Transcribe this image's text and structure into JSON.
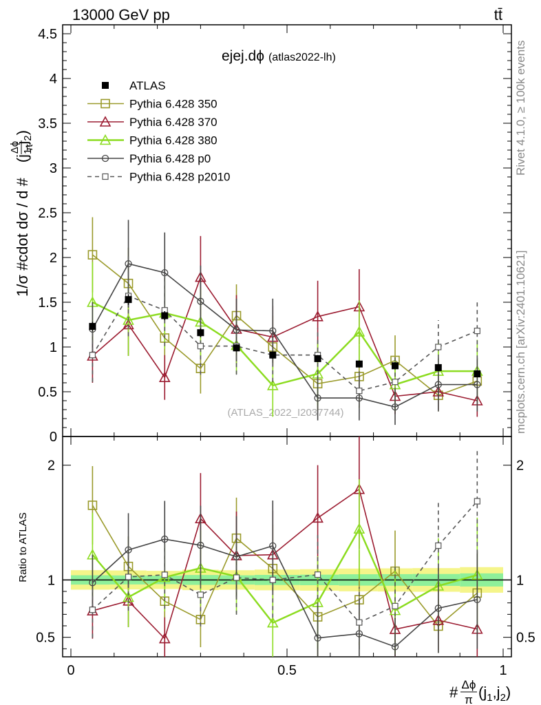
{
  "header": {
    "energy_label": "13000 GeV pp",
    "process_label": "tt̄"
  },
  "side_labels": {
    "rivet": "Rivet 4.1.0, ≥ 100k events",
    "mcplots": "mcplots.cern.ch [arXiv:2401.10621]"
  },
  "chart_data": {
    "type": "line",
    "title": "ejej.dϕ",
    "subtitle": "(atlas2022-lh)",
    "watermark": "(ATLAS_2022_I2037744)",
    "ylabel_parts": {
      "prefix": "1/σ #cdot dσ / d #",
      "frac_num": "Δϕ",
      "frac_den": "π",
      "suffix": "(j",
      "sub1": "1",
      "comma": ",j",
      "sub2": "2",
      "close": ")"
    },
    "xlabel_parts": {
      "prefix": "#",
      "frac_num": "Δϕ",
      "frac_den": "π",
      "suffix": "(j",
      "sub1": "1",
      "comma": ",j",
      "sub2": "2",
      "close": ")"
    },
    "ratio_ylabel": "Ratio to ATLAS",
    "xlim": [
      0,
      1
    ],
    "ylim": [
      0,
      4.6
    ],
    "ratio_ylim": [
      0.33,
      2.25
    ],
    "x_ticks": [
      {
        "v": 0,
        "label": "0"
      },
      {
        "v": 0.5,
        "label": "0.5"
      },
      {
        "v": 1,
        "label": "1"
      }
    ],
    "y_ticks": [
      {
        "v": 0,
        "label": "0"
      },
      {
        "v": 0.5,
        "label": "0.5"
      },
      {
        "v": 1,
        "label": "1"
      },
      {
        "v": 1.5,
        "label": "1.5"
      },
      {
        "v": 2,
        "label": "2"
      },
      {
        "v": 2.5,
        "label": "2.5"
      },
      {
        "v": 3,
        "label": "3"
      },
      {
        "v": 3.5,
        "label": "3.5"
      },
      {
        "v": 4,
        "label": "4"
      },
      {
        "v": 4.5,
        "label": "4.5"
      }
    ],
    "ratio_ticks": [
      {
        "v": 0.5,
        "label": "0.5"
      },
      {
        "v": 1,
        "label": "1"
      },
      {
        "v": 2,
        "label": "2"
      }
    ],
    "x": [
      0.05,
      0.133,
      0.217,
      0.3,
      0.383,
      0.467,
      0.571,
      0.667,
      0.75,
      0.85,
      0.94
    ],
    "data": {
      "name": "ATLAS",
      "values": [
        1.23,
        1.53,
        1.35,
        1.16,
        0.99,
        0.91,
        0.87,
        0.81,
        0.79,
        0.77,
        0.7
      ],
      "err": [
        0.05,
        0.06,
        0.05,
        0.05,
        0.04,
        0.04,
        0.04,
        0.04,
        0.04,
        0.04,
        0.04
      ]
    },
    "series": [
      {
        "name": "Pythia 6.428 350",
        "color": "#9a9a2a",
        "marker": "square",
        "dash": "",
        "values": [
          2.03,
          1.71,
          1.1,
          0.76,
          1.35,
          1.0,
          0.59,
          0.67,
          0.85,
          0.46,
          0.62
        ],
        "err": [
          0.42,
          0.4,
          0.35,
          0.28,
          0.35,
          0.35,
          0.3,
          0.35,
          0.28,
          0.18,
          0.25
        ]
      },
      {
        "name": "Pythia 6.428 370",
        "color": "#9b1b30",
        "marker": "triangle",
        "dash": "",
        "values": [
          0.9,
          1.25,
          0.66,
          1.78,
          1.2,
          1.11,
          1.34,
          1.45,
          0.45,
          0.5,
          0.4
        ],
        "err": [
          0.3,
          0.35,
          0.25,
          0.46,
          0.38,
          0.35,
          0.4,
          0.42,
          0.2,
          0.2,
          0.18
        ]
      },
      {
        "name": "Pythia 6.428 380",
        "color": "#8cdc20",
        "marker": "triangle",
        "dash": "",
        "values": [
          1.5,
          1.3,
          1.38,
          1.28,
          1.02,
          0.57,
          0.7,
          1.17,
          0.58,
          0.73,
          0.73
        ],
        "err": [
          0.45,
          0.4,
          0.4,
          0.38,
          0.32,
          0.35,
          0.35,
          0.35,
          0.3,
          0.32,
          0.35
        ]
      },
      {
        "name": "Pythia 6.428 p0",
        "color": "#444444",
        "marker": "circle",
        "dash": "",
        "values": [
          1.2,
          1.93,
          1.83,
          1.51,
          1.19,
          1.18,
          0.43,
          0.43,
          0.33,
          0.58,
          0.58
        ],
        "err": [
          0.3,
          0.49,
          0.45,
          0.4,
          0.35,
          0.36,
          0.25,
          0.25,
          0.2,
          0.3,
          0.3
        ]
      },
      {
        "name": "Pythia 6.428 p2010",
        "color": "#555555",
        "marker": "opensquare",
        "dash": "6,5",
        "values": [
          0.91,
          1.57,
          1.41,
          1.01,
          1.01,
          0.91,
          0.91,
          0.51,
          0.61,
          1.0,
          1.18
        ],
        "err": [
          0.3,
          0.45,
          0.4,
          0.32,
          0.32,
          0.3,
          0.3,
          0.25,
          0.28,
          0.3,
          0.32
        ]
      }
    ]
  }
}
